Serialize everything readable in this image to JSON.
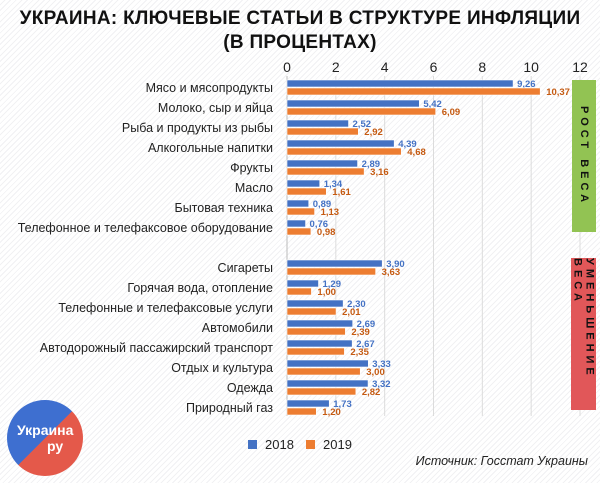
{
  "title_line1": "УКРАИНА: КЛЮЧЕВЫЕ СТАТЬИ В СТРУКТУРЕ ИНФЛЯЦИИ",
  "title_line2": "(В ПРОЦЕНТАХ)",
  "groups": {
    "growth": "РОСТ ВЕСА",
    "decline": "УМЕНЬШЕНИЕ ВЕСА"
  },
  "colors": {
    "s2018": "#4472c4",
    "s2019": "#ed7d31",
    "growth": "#92c353",
    "decline": "#e15759"
  },
  "source": "Источник: Госстат Украины",
  "logo": {
    "text1": "Украина",
    "text2": "ру"
  },
  "chart_data": {
    "type": "bar",
    "orientation": "horizontal",
    "categories": [
      "Мясо и мясопродукты",
      "Молоко, сыр и яйца",
      "Рыба и продукты из рыбы",
      "Алкогольные напитки",
      "Фрукты",
      "Масло",
      "Бытовая техника",
      "Телефонное и телефаксовое оборудование",
      "Сигареты",
      "Горячая вода, отопление",
      "Телефонные и телефаксовые услуги",
      "Автомобили",
      "Автодорожный пассажирский транспорт",
      "Отдых и культура",
      "Одежда",
      "Природный газ"
    ],
    "series": [
      {
        "name": "2018",
        "values": [
          9.26,
          5.42,
          2.52,
          4.39,
          2.89,
          1.34,
          0.89,
          0.76,
          3.9,
          1.29,
          2.3,
          2.69,
          2.67,
          3.33,
          3.32,
          1.73
        ],
        "labels": [
          "9,26",
          "5,42",
          "2,52",
          "4,39",
          "2,89",
          "1,34",
          "0,89",
          "0,76",
          "3,90",
          "1,29",
          "2,30",
          "2,69",
          "2,67",
          "3,33",
          "3,32",
          "1,73"
        ]
      },
      {
        "name": "2019",
        "values": [
          10.37,
          6.09,
          2.92,
          4.68,
          3.16,
          1.61,
          1.13,
          0.98,
          3.63,
          1.0,
          2.01,
          2.39,
          2.35,
          3.0,
          2.82,
          1.2
        ],
        "labels": [
          "10,37",
          "6,09",
          "2,92",
          "4,68",
          "3,16",
          "1,61",
          "1,13",
          "0,98",
          "3,63",
          "1,00",
          "2,01",
          "2,39",
          "2,35",
          "3,00",
          "2,82",
          "1,20"
        ]
      }
    ],
    "xlim": [
      0,
      12
    ],
    "xticks": [
      "0",
      "2",
      "4",
      "6",
      "8",
      "10",
      "12"
    ],
    "grid": true,
    "legend": "bottom"
  }
}
